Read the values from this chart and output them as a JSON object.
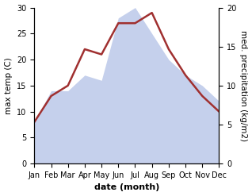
{
  "months": [
    "Jan",
    "Feb",
    "Mar",
    "Apr",
    "May",
    "Jun",
    "Jul",
    "Aug",
    "Sep",
    "Oct",
    "Nov",
    "Dec"
  ],
  "temperature": [
    8,
    13,
    15,
    22,
    21,
    27,
    27,
    29,
    22,
    17,
    13,
    10
  ],
  "precipitation": [
    8,
    14,
    14,
    17,
    16,
    28,
    30,
    25,
    20,
    17,
    15,
    12
  ],
  "temp_color": "#a03030",
  "precip_color_fill": "#c5d0ec",
  "background_color": "#ffffff",
  "temp_ylim": [
    0,
    30
  ],
  "precip_ylim": [
    0,
    30
  ],
  "right_yticks": [
    0,
    5,
    10,
    15,
    20
  ],
  "right_ytick_positions": [
    0,
    7.5,
    15,
    22.5,
    30
  ],
  "xlabel": "date (month)",
  "ylabel_left": "max temp (C)",
  "ylabel_right": "med. precipitation (kg/m2)",
  "temp_linewidth": 1.8,
  "xlabel_fontsize": 8,
  "ylabel_fontsize": 7.5,
  "tick_fontsize": 7
}
